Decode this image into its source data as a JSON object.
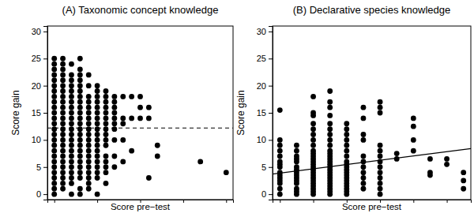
{
  "chart_data": [
    {
      "type": "scatter",
      "title": "(A) Taxonomic concept knowledge",
      "xlabel": "Score pre−test",
      "ylabel": "Score gain",
      "xlim": [
        -0.8,
        20.8
      ],
      "ylim": [
        -1,
        31
      ],
      "xticks": [
        0,
        5,
        10,
        15,
        20
      ],
      "yticks": [
        0,
        5,
        10,
        15,
        20,
        25,
        30
      ],
      "tick_labels": "y",
      "series": [
        {
          "type": "scatter",
          "marker": "circle",
          "color": "#000000",
          "x": [
            0,
            0,
            0,
            0,
            0,
            0,
            0,
            0,
            0,
            0,
            0,
            0,
            0,
            0,
            0,
            0,
            0,
            0,
            0,
            0,
            0,
            0,
            0,
            0,
            0,
            0,
            1,
            1,
            1,
            1,
            1,
            1,
            1,
            1,
            1,
            1,
            1,
            1,
            1,
            1,
            1,
            1,
            1,
            1,
            1,
            1,
            1,
            1,
            1,
            1,
            1,
            2,
            2,
            2,
            2,
            2,
            2,
            2,
            2,
            2,
            2,
            2,
            2,
            2,
            2,
            2,
            2,
            2,
            2,
            2,
            2,
            2,
            2,
            2,
            3,
            3,
            3,
            3,
            3,
            3,
            3,
            3,
            3,
            3,
            3,
            3,
            3,
            3,
            3,
            3,
            3,
            3,
            3,
            3,
            3,
            3,
            3,
            3,
            4,
            4,
            4,
            4,
            4,
            4,
            4,
            4,
            4,
            4,
            4,
            4,
            4,
            4,
            4,
            4,
            4,
            4,
            4,
            4,
            5,
            5,
            5,
            5,
            5,
            5,
            5,
            5,
            5,
            5,
            5,
            5,
            5,
            5,
            5,
            5,
            5,
            5,
            5,
            6,
            6,
            6,
            6,
            6,
            6,
            6,
            6,
            6,
            6,
            6,
            6,
            6,
            6,
            6,
            6,
            7,
            7,
            7,
            7,
            7,
            7,
            7,
            7,
            7,
            7,
            8,
            8,
            8,
            8,
            8,
            9,
            9,
            9,
            10,
            10,
            10,
            11,
            11,
            11,
            12,
            12,
            17,
            20
          ],
          "values": [
            0,
            1,
            2,
            3,
            4,
            5,
            6,
            7,
            8,
            9,
            10,
            11,
            12,
            13,
            14,
            15,
            16,
            17,
            18,
            19,
            20,
            21,
            22,
            23,
            24,
            25,
            1,
            2,
            3,
            4,
            5,
            6,
            7,
            8,
            9,
            10,
            11,
            12,
            13,
            14,
            15,
            16,
            17,
            18,
            19,
            20,
            21,
            22,
            23,
            24,
            25,
            0,
            2,
            3,
            4,
            5,
            6,
            7,
            8,
            9,
            10,
            11,
            12,
            13,
            14,
            15,
            16,
            17,
            18,
            19,
            20,
            21,
            22,
            24,
            0,
            1,
            3,
            4,
            5,
            6,
            7,
            8,
            9,
            10,
            11,
            12,
            13,
            14,
            15,
            16,
            17,
            18,
            19,
            20,
            21,
            22,
            23,
            25,
            1,
            2,
            3,
            4,
            5,
            6,
            7,
            8,
            9,
            10,
            11,
            12,
            13,
            14,
            15,
            16,
            17,
            18,
            20,
            22,
            0,
            3,
            4,
            5,
            6,
            7,
            8,
            9,
            10,
            11,
            12,
            13,
            14,
            15,
            16,
            17,
            18,
            19,
            20,
            2,
            4,
            5,
            6,
            7,
            9,
            10,
            11,
            12,
            13,
            14,
            15,
            16,
            17,
            18,
            19,
            5,
            7,
            10,
            12,
            13,
            14,
            15,
            16,
            17,
            18,
            6,
            10,
            13,
            14,
            18,
            8,
            14,
            18,
            14,
            16,
            18,
            3,
            14,
            16,
            7,
            9,
            6,
            4
          ]
        },
        {
          "type": "line",
          "line_style": "dashed",
          "color": "#000000",
          "x": [
            -0.8,
            20.8
          ],
          "values": [
            12.2,
            12.2
          ]
        }
      ]
    },
    {
      "type": "scatter",
      "title": "(B) Declarative species knowledge",
      "xlabel": "Score pre−test",
      "ylabel": "Score gain",
      "xlim": [
        -0.44,
        11.44
      ],
      "ylim": [
        -1,
        31
      ],
      "xticks": [
        0,
        2,
        4,
        6,
        8,
        10
      ],
      "yticks": [
        0,
        5,
        10,
        15,
        20,
        25,
        30
      ],
      "tick_labels": "y",
      "series": [
        {
          "type": "scatter",
          "marker": "circle",
          "color": "#000000",
          "x": [
            0,
            0,
            0,
            0,
            0,
            0,
            0,
            0,
            0,
            0,
            0,
            0,
            0,
            0,
            0,
            1,
            1,
            1,
            1,
            1,
            1,
            1,
            1,
            1,
            1,
            1,
            1,
            1,
            1,
            1,
            2,
            2,
            2,
            2,
            2,
            2,
            2,
            2,
            2,
            2,
            2,
            2,
            2,
            2,
            2,
            2,
            2,
            2,
            2,
            2,
            2,
            2,
            2,
            2,
            2,
            3,
            3,
            3,
            3,
            3,
            3,
            3,
            3,
            3,
            3,
            3,
            3,
            3,
            3,
            3,
            3,
            3,
            3,
            3,
            3,
            3,
            3,
            3,
            3,
            3,
            3,
            4,
            4,
            4,
            4,
            4,
            4,
            4,
            4,
            4,
            4,
            4,
            4,
            4,
            4,
            4,
            4,
            4,
            4,
            4,
            4,
            5,
            5,
            5,
            5,
            5,
            5,
            5,
            5,
            5,
            5,
            5,
            6,
            6,
            6,
            6,
            6,
            6,
            6,
            6,
            6,
            6,
            6,
            6,
            6,
            7,
            7,
            8,
            8,
            8,
            8,
            9,
            9,
            9,
            10,
            10,
            11,
            11,
            11
          ],
          "values": [
            0,
            1,
            2,
            2.5,
            3,
            3.5,
            4,
            5,
            5.5,
            6,
            7,
            8,
            9,
            10,
            15.5,
            0,
            0.5,
            1,
            2,
            2.5,
            3,
            3.5,
            4,
            4.5,
            5,
            6,
            6.5,
            7,
            8,
            9,
            0,
            0.5,
            1,
            1.5,
            2,
            2.5,
            3,
            3.5,
            4,
            4.5,
            5,
            5.5,
            6,
            6.5,
            7,
            7.5,
            8,
            9,
            10,
            11,
            12,
            13,
            14.5,
            15,
            18,
            0,
            0.5,
            1,
            1.5,
            2,
            2.5,
            3,
            3.5,
            4,
            4.5,
            5,
            5.5,
            6,
            6.5,
            7,
            7.5,
            8,
            9,
            10,
            11,
            12,
            13,
            14.5,
            16,
            17,
            19,
            0,
            0.5,
            1,
            1.5,
            2,
            2.5,
            3,
            3.5,
            4,
            4.5,
            5,
            5.5,
            6,
            7,
            8,
            9,
            10,
            11,
            12,
            13,
            1,
            2,
            3,
            4,
            5,
            6,
            7,
            10,
            11,
            14,
            16,
            0,
            1,
            2,
            3,
            4,
            5,
            6,
            7,
            8,
            9,
            15,
            16,
            17,
            6.5,
            7.5,
            8,
            10,
            12.5,
            14,
            3.5,
            4,
            6.5,
            5.5,
            6.5,
            1,
            2.5,
            4
          ]
        },
        {
          "type": "line",
          "line_style": "solid",
          "color": "#000000",
          "x": [
            -0.44,
            11.44
          ],
          "values": [
            3.7,
            8.4
          ]
        }
      ]
    }
  ]
}
